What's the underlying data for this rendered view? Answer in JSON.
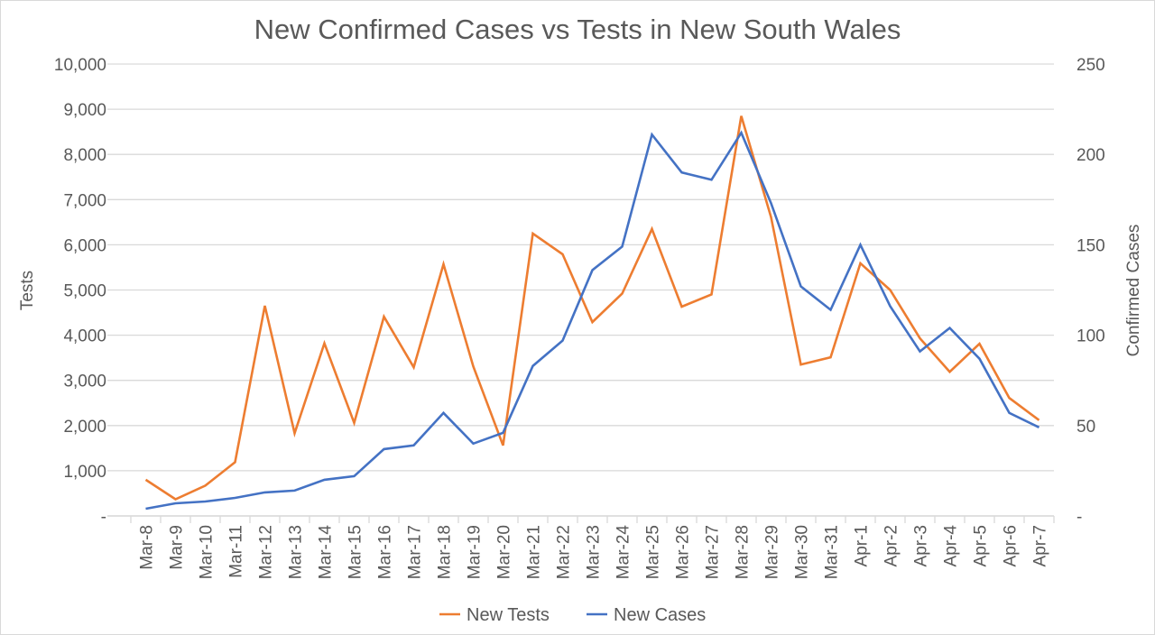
{
  "chart_data": {
    "type": "line",
    "title": "New Confirmed Cases vs Tests in New South Wales",
    "xlabel": "",
    "ylabel": "Tests",
    "y2label": "Confirmed Cases",
    "categories": [
      "Mar-8",
      "Mar-9",
      "Mar-10",
      "Mar-11",
      "Mar-12",
      "Mar-13",
      "Mar-14",
      "Mar-15",
      "Mar-16",
      "Mar-17",
      "Mar-18",
      "Mar-19",
      "Mar-20",
      "Mar-21",
      "Mar-22",
      "Mar-23",
      "Mar-24",
      "Mar-25",
      "Mar-26",
      "Mar-27",
      "Mar-28",
      "Mar-29",
      "Mar-30",
      "Mar-31",
      "Apr-1",
      "Apr-2",
      "Apr-3",
      "Apr-4",
      "Apr-5",
      "Apr-6",
      "Apr-7"
    ],
    "ylim": [
      0,
      10000
    ],
    "y2lim": [
      0,
      250
    ],
    "y_ticks": [
      "-",
      "1,000",
      "2,000",
      "3,000",
      "4,000",
      "5,000",
      "6,000",
      "7,000",
      "8,000",
      "9,000",
      "10,000"
    ],
    "y_tick_values": [
      0,
      1000,
      2000,
      3000,
      4000,
      5000,
      6000,
      7000,
      8000,
      9000,
      10000
    ],
    "y2_ticks": [
      "-",
      "50",
      "100",
      "150",
      "200",
      "250"
    ],
    "y2_tick_values": [
      0,
      50,
      100,
      150,
      200,
      250
    ],
    "grid": true,
    "legend_position": "bottom",
    "series": [
      {
        "name": "New Tests",
        "axis": "left",
        "color": "#ED7D31",
        "values": [
          800,
          370,
          670,
          1190,
          4650,
          1830,
          3820,
          2060,
          4410,
          3290,
          5570,
          3310,
          1560,
          6250,
          5790,
          4290,
          4920,
          6350,
          4630,
          4900,
          8850,
          6610,
          3350,
          3510,
          5590,
          5000,
          3930,
          3190,
          3810,
          2610,
          2120
        ]
      },
      {
        "name": "New Cases",
        "axis": "right",
        "color": "#4472C4",
        "values": [
          4,
          7,
          8,
          10,
          13,
          14,
          20,
          22,
          37,
          39,
          57,
          40,
          46,
          83,
          97,
          136,
          149,
          211,
          190,
          186,
          212,
          173,
          127,
          114,
          150,
          116,
          91,
          104,
          87,
          57,
          49
        ]
      }
    ]
  },
  "colors": {
    "gridline": "#d9d9d9",
    "text": "#595959"
  }
}
